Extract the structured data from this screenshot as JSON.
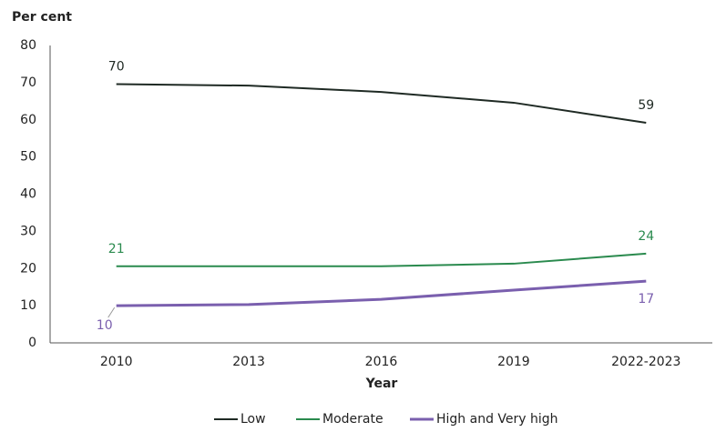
{
  "chart_data": {
    "type": "line",
    "y_label": "Per cent",
    "x_label": "Year",
    "categories": [
      "2010",
      "2013",
      "2016",
      "2019",
      "2022-2023"
    ],
    "ylim": [
      0,
      80
    ],
    "yticks": [
      0,
      10,
      20,
      30,
      40,
      50,
      60,
      70,
      80
    ],
    "grid": false,
    "legend": "bottom",
    "series": [
      {
        "name": "Low",
        "color": "#1f2a24",
        "values": [
          69.6,
          69.2,
          67.5,
          64.6,
          59.2
        ],
        "value_labels": [
          "70",
          null,
          null,
          null,
          "59"
        ]
      },
      {
        "name": "Moderate",
        "color": "#2a8a4e",
        "values": [
          20.6,
          20.6,
          20.6,
          21.3,
          24.0
        ],
        "value_labels": [
          "21",
          null,
          null,
          null,
          "24"
        ]
      },
      {
        "name": "High and Very high",
        "color": "#7a5fae",
        "values": [
          10.0,
          10.3,
          11.7,
          14.2,
          16.6
        ],
        "value_labels": [
          "10",
          null,
          null,
          null,
          "17"
        ]
      }
    ]
  }
}
